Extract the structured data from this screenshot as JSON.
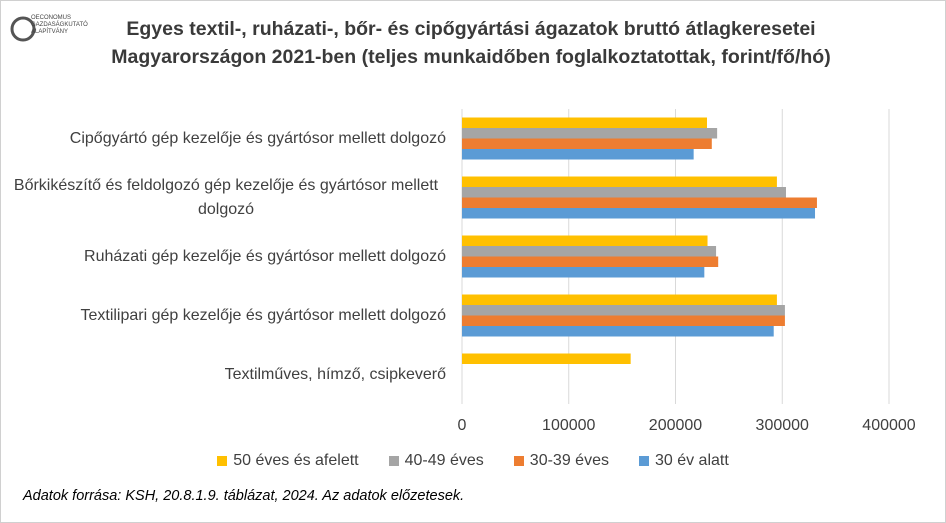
{
  "logo": {
    "text": "OECONOMUS GAZDASÁGKUTATÓ ALAPÍTVÁNY"
  },
  "chart_data": {
    "type": "hbar",
    "title": "Egyes textil-, ruházati-, bőr- és cipőgyártási ágazatok bruttó átlagkeresetei Magyarországon 2021-ben (teljes munkaidőben foglalkoztatottak, forint/fő/hó)",
    "categories": [
      "Cipőgyártó gép kezelője és gyártósor mellett dolgozó",
      "Bőrkikészítő és feldolgozó gép kezelője és gyártósor mellett dolgozó",
      "Ruházati gép kezelője és gyártósor mellett dolgozó",
      "Textilipari gép kezelője és gyártósor mellett dolgozó",
      "Textilműves, hímző, csipkeverő"
    ],
    "series": [
      {
        "name": "50 éves és afelett",
        "color": "#ffc000",
        "values": [
          229500,
          295000,
          230000,
          295000,
          158000
        ]
      },
      {
        "name": "40-49 éves",
        "color": "#a5a5a5",
        "values": [
          239000,
          303500,
          238000,
          302500,
          null
        ]
      },
      {
        "name": "30-39 éves",
        "color": "#ed7d31",
        "values": [
          234000,
          332500,
          240000,
          302500,
          null
        ]
      },
      {
        "name": "30 év alatt",
        "color": "#5b9bd5",
        "values": [
          217000,
          330700,
          227000,
          292000,
          null
        ]
      }
    ],
    "xlim": [
      0,
      400000
    ],
    "xticks": [
      0,
      100000,
      200000,
      300000,
      400000
    ],
    "grid": true,
    "legend": "bottom",
    "source": "Adatok forrása: KSH, 20.8.1.9. táblázat, 2024. Az adatok előzetesek."
  }
}
